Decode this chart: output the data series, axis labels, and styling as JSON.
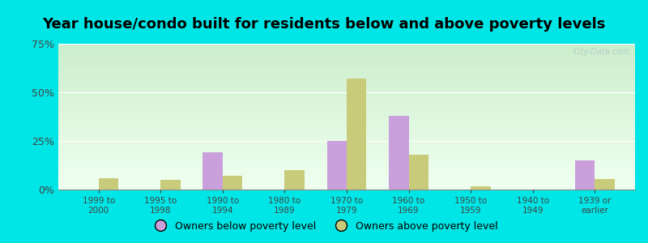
{
  "title": "Year house/condo built for residents below and above poverty levels",
  "categories": [
    "1999 to\n2000",
    "1995 to\n1998",
    "1990 to\n1994",
    "1980 to\n1989",
    "1970 to\n1979",
    "1960 to\n1969",
    "1950 to\n1959",
    "1940 to\n1949",
    "1939 or\nearlier"
  ],
  "below_poverty": [
    0.0,
    0.0,
    19.0,
    0.0,
    25.0,
    38.0,
    0.0,
    0.0,
    15.0
  ],
  "above_poverty": [
    6.0,
    5.0,
    7.0,
    10.0,
    57.0,
    18.0,
    1.5,
    0.0,
    5.5
  ],
  "below_color": "#c9a0dc",
  "above_color": "#c8cc7a",
  "background_color": "#00e5e5",
  "ylim": [
    0,
    75
  ],
  "yticks": [
    0,
    25,
    50,
    75
  ],
  "bar_width": 0.32,
  "title_fontsize": 13,
  "legend_below_label": "Owners below poverty level",
  "legend_above_label": "Owners above poverty level"
}
